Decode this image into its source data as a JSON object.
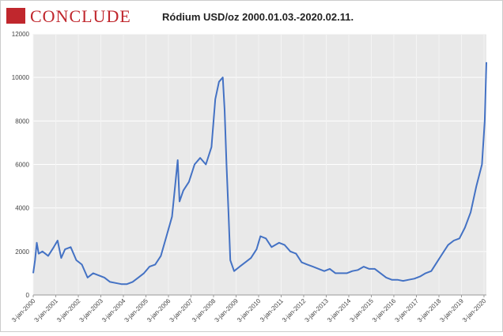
{
  "logo": "CONCLUDE",
  "chart_data": {
    "type": "line",
    "title": "Ródium USD/oz 2000.01.03.-2020.02.11.",
    "x": [
      "2000-01-03",
      "2000-02-01",
      "2000-03-01",
      "2000-04-01",
      "2000-06-01",
      "2000-09-01",
      "2000-12-01",
      "2001-02-01",
      "2001-04-01",
      "2001-06-01",
      "2001-09-01",
      "2001-12-01",
      "2002-03-01",
      "2002-06-01",
      "2002-09-01",
      "2002-12-01",
      "2003-03-01",
      "2003-06-01",
      "2003-09-01",
      "2003-12-01",
      "2004-03-01",
      "2004-06-01",
      "2004-09-01",
      "2004-12-01",
      "2005-03-01",
      "2005-06-01",
      "2005-09-01",
      "2005-12-01",
      "2006-03-01",
      "2006-06-01",
      "2006-07-01",
      "2006-09-01",
      "2006-12-01",
      "2007-03-01",
      "2007-06-01",
      "2007-09-01",
      "2007-12-01",
      "2008-02-01",
      "2008-04-01",
      "2008-06-01",
      "2008-07-01",
      "2008-08-01",
      "2008-09-01",
      "2008-10-01",
      "2008-12-01",
      "2009-03-01",
      "2009-06-01",
      "2009-09-01",
      "2009-12-01",
      "2010-02-01",
      "2010-05-01",
      "2010-08-01",
      "2010-12-01",
      "2011-03-01",
      "2011-06-01",
      "2011-09-01",
      "2011-12-01",
      "2012-03-01",
      "2012-06-01",
      "2012-09-01",
      "2012-12-01",
      "2013-03-01",
      "2013-06-01",
      "2013-09-01",
      "2013-12-01",
      "2014-03-01",
      "2014-06-01",
      "2014-09-01",
      "2014-12-01",
      "2015-03-01",
      "2015-06-01",
      "2015-09-01",
      "2015-12-01",
      "2016-03-01",
      "2016-06-01",
      "2016-09-01",
      "2016-12-01",
      "2017-03-01",
      "2017-06-01",
      "2017-09-01",
      "2017-12-01",
      "2018-03-01",
      "2018-06-01",
      "2018-09-01",
      "2018-12-01",
      "2019-03-01",
      "2019-06-01",
      "2019-09-01",
      "2019-12-01",
      "2020-01-15",
      "2020-02-11"
    ],
    "series": [
      {
        "color": "#4472c4",
        "values": [
          1000,
          1600,
          2400,
          1900,
          2000,
          1800,
          2200,
          2500,
          1700,
          2100,
          2200,
          1600,
          1400,
          800,
          1000,
          900,
          800,
          600,
          550,
          500,
          500,
          600,
          800,
          1000,
          1300,
          1400,
          1800,
          2700,
          3600,
          6200,
          4300,
          4800,
          5200,
          6000,
          6300,
          6000,
          6800,
          9000,
          9800,
          10000,
          8500,
          6000,
          3800,
          1600,
          1100,
          1300,
          1500,
          1700,
          2100,
          2700,
          2600,
          2200,
          2400,
          2300,
          2000,
          1900,
          1500,
          1400,
          1300,
          1200,
          1100,
          1200,
          1000,
          1000,
          1000,
          1100,
          1150,
          1300,
          1200,
          1200,
          1000,
          800,
          700,
          700,
          650,
          700,
          750,
          850,
          1000,
          1100,
          1500,
          1900,
          2300,
          2500,
          2600,
          3100,
          3800,
          5000,
          6000,
          8000,
          10700
        ]
      }
    ],
    "xlim": [
      "2000-01-03",
      "2020-02-11"
    ],
    "xticks": [
      {
        "value": "2000-01-03",
        "label": "3-jan-2000"
      },
      {
        "value": "2001-01-03",
        "label": "3-jan-2001"
      },
      {
        "value": "2002-01-03",
        "label": "3-jan-2002"
      },
      {
        "value": "2003-01-03",
        "label": "3-jan-2003"
      },
      {
        "value": "2004-01-03",
        "label": "3-jan-2004"
      },
      {
        "value": "2005-01-03",
        "label": "3-jan-2005"
      },
      {
        "value": "2006-01-03",
        "label": "3-jan-2006"
      },
      {
        "value": "2007-01-03",
        "label": "3-jan-2007"
      },
      {
        "value": "2008-01-03",
        "label": "3-jan-2008"
      },
      {
        "value": "2009-01-03",
        "label": "3-jan-2009"
      },
      {
        "value": "2010-01-03",
        "label": "3-jan-2010"
      },
      {
        "value": "2011-01-03",
        "label": "3-jan-2011"
      },
      {
        "value": "2012-01-03",
        "label": "3-jan-2012"
      },
      {
        "value": "2013-01-03",
        "label": "3-jan-2013"
      },
      {
        "value": "2014-01-03",
        "label": "3-jan-2014"
      },
      {
        "value": "2015-01-03",
        "label": "3-jan-2015"
      },
      {
        "value": "2016-01-03",
        "label": "3-jan-2016"
      },
      {
        "value": "2017-01-03",
        "label": "3-jan-2017"
      },
      {
        "value": "2018-01-03",
        "label": "3-jan-2018"
      },
      {
        "value": "2019-01-03",
        "label": "3-jan-2019"
      },
      {
        "value": "2020-01-03",
        "label": "3-jan-2020"
      }
    ],
    "ylim": [
      0,
      12000
    ],
    "yticks": [
      0,
      2000,
      4000,
      6000,
      8000,
      10000,
      12000
    ],
    "grid": true
  }
}
